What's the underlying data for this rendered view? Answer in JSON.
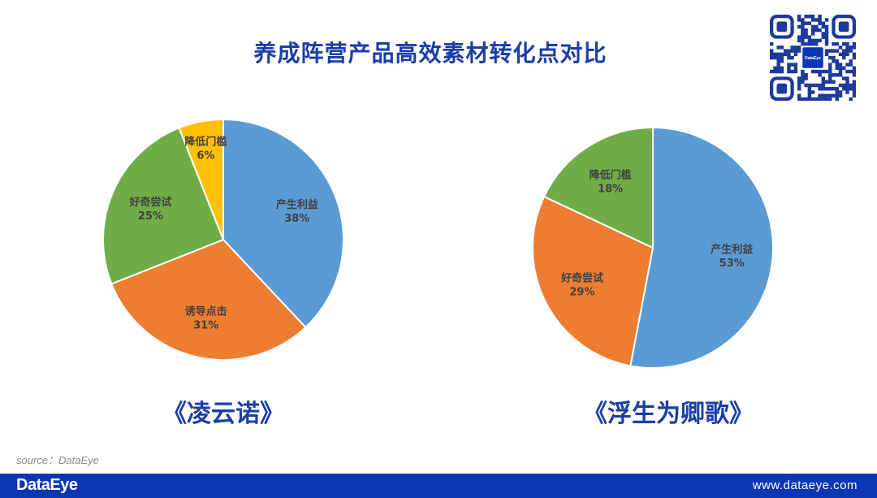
{
  "header": {
    "title": "养成阵营产品高效素材转化点对比"
  },
  "qr": {
    "logo_text": "DataEye"
  },
  "chart_data": [
    {
      "type": "pie",
      "title": "《凌云诺》",
      "slices": [
        {
          "label": "产生利益",
          "value": 38,
          "display": "38%",
          "color": "#5b9bd5"
        },
        {
          "label": "诱导点击",
          "value": 31,
          "display": "31%",
          "color": "#ed7d31"
        },
        {
          "label": "好奇尝试",
          "value": 25,
          "display": "25%",
          "color": "#70ad47"
        },
        {
          "label": "降低门槛",
          "value": 6,
          "display": "6%",
          "color": "#ffc000"
        }
      ]
    },
    {
      "type": "pie",
      "title": "《浮生为卿歌》",
      "slices": [
        {
          "label": "产生利益",
          "value": 53,
          "display": "53%",
          "color": "#5b9bd5"
        },
        {
          "label": "好奇尝试",
          "value": 29,
          "display": "29%",
          "color": "#ed7d31"
        },
        {
          "label": "降低门槛",
          "value": 18,
          "display": "18%",
          "color": "#70ad47"
        }
      ]
    }
  ],
  "source": "source：DataEye",
  "footer": {
    "logo": "DataEye",
    "url": "www.dataeye.com"
  }
}
